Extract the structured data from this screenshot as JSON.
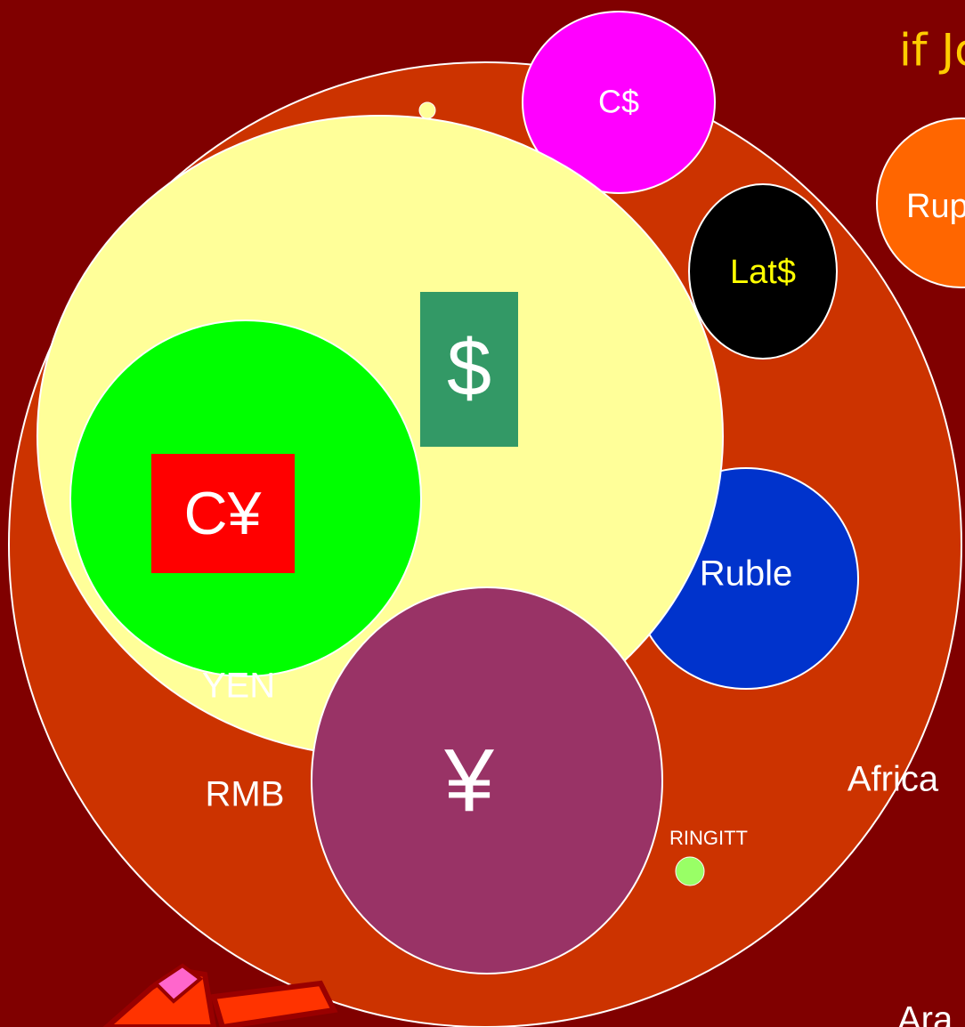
{
  "title": "if Jo",
  "labels": {
    "cad": "C$",
    "rupee": "Rup",
    "latin": "Lat$",
    "dollar": "$",
    "cyuan": "C¥",
    "ruble": "Ruble",
    "yen_label": "YEN",
    "rmb": "RMB",
    "yen": "¥",
    "africa": "Africa",
    "ringitt": "RINGITT",
    "arab": "Ara"
  }
}
